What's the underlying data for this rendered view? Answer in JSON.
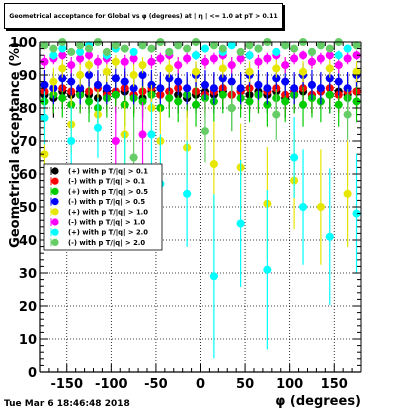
{
  "footer": {
    "timestamp": "Tue Mar  6 18:46:48 2018"
  },
  "colors": {
    "background": "#ffffff",
    "axis": "#000000",
    "grid": "#000000"
  },
  "chart_data": {
    "type": "scatter",
    "title": "Geometrical acceptance for Global vs φ (degrees) at | η | <= 1.0 at pT > 0.11",
    "xlabel": "φ (degrees)",
    "ylabel": "Geometrical acceptance (%)",
    "xlim": [
      -180,
      180
    ],
    "ylim": [
      0,
      100
    ],
    "xticks": [
      -150,
      -100,
      -50,
      0,
      50,
      100,
      150
    ],
    "yticks": [
      0,
      10,
      20,
      30,
      40,
      50,
      60,
      70,
      80,
      90,
      100
    ],
    "grid": true,
    "legend_position": "center-left",
    "series": [
      {
        "name": "(+) with p T/|q| > 0.1",
        "color": "#000000",
        "marker": "circle",
        "x": [
          -175,
          -165,
          -155,
          -145,
          -135,
          -125,
          -115,
          -105,
          -95,
          -85,
          -75,
          -65,
          -55,
          -45,
          -35,
          -25,
          -15,
          -5,
          5,
          15,
          25,
          35,
          45,
          55,
          65,
          75,
          85,
          95,
          105,
          115,
          125,
          135,
          145,
          155,
          165,
          175
        ],
        "y": [
          84,
          83,
          85,
          84,
          85,
          84,
          83,
          85,
          84,
          85,
          84,
          83,
          85,
          84,
          85,
          84,
          83,
          84,
          85,
          84,
          85,
          84,
          85,
          84,
          85,
          84,
          85,
          83,
          84,
          85,
          84,
          85,
          84,
          85,
          84,
          85
        ]
      },
      {
        "name": "(-) with p T/|q| > 0.1",
        "color": "#ff0000",
        "marker": "circle",
        "x": [
          -175,
          -165,
          -155,
          -145,
          -135,
          -125,
          -115,
          -105,
          -95,
          -85,
          -75,
          -65,
          -55,
          -45,
          -35,
          -25,
          -15,
          -5,
          5,
          15,
          25,
          35,
          45,
          55,
          65,
          75,
          85,
          95,
          105,
          115,
          125,
          135,
          145,
          155,
          165,
          175
        ],
        "y": [
          85,
          84,
          86,
          85,
          84,
          85,
          86,
          84,
          85,
          86,
          84,
          85,
          86,
          84,
          85,
          86,
          84,
          85,
          84,
          85,
          86,
          84,
          85,
          86,
          84,
          85,
          86,
          84,
          85,
          86,
          84,
          85,
          86,
          84,
          85,
          85
        ]
      },
      {
        "name": "(+) with p T/|q| > 0.5",
        "color": "#00cc00",
        "marker": "circle",
        "x": [
          -175,
          -165,
          -155,
          -145,
          -135,
          -125,
          -115,
          -105,
          -95,
          -85,
          -75,
          -65,
          -55,
          -45,
          -35,
          -25,
          -15,
          -5,
          5,
          15,
          25,
          35,
          45,
          55,
          65,
          75,
          85,
          95,
          105,
          115,
          125,
          135,
          145,
          155,
          165,
          175
        ],
        "y": [
          82,
          84,
          83,
          81,
          84,
          82,
          80,
          83,
          84,
          81,
          83,
          82,
          84,
          80,
          83,
          82,
          84,
          81,
          83,
          82,
          84,
          80,
          83,
          82,
          84,
          81,
          83,
          82,
          84,
          81,
          83,
          82,
          84,
          81,
          83,
          82
        ]
      },
      {
        "name": "(-) with p T/|q| > 0.5",
        "color": "#0000ff",
        "marker": "circle",
        "x": [
          -175,
          -165,
          -155,
          -145,
          -135,
          -125,
          -115,
          -105,
          -95,
          -85,
          -75,
          -65,
          -55,
          -45,
          -35,
          -25,
          -15,
          -5,
          5,
          15,
          25,
          35,
          45,
          55,
          65,
          75,
          85,
          95,
          105,
          115,
          125,
          135,
          145,
          155,
          165,
          175
        ],
        "y": [
          87,
          86,
          89,
          88,
          86,
          90,
          87,
          86,
          89,
          88,
          86,
          90,
          87,
          86,
          89,
          88,
          86,
          90,
          87,
          86,
          89,
          88,
          86,
          90,
          87,
          86,
          89,
          88,
          86,
          90,
          87,
          86,
          89,
          88,
          86,
          90
        ]
      },
      {
        "name": "(+) with p T/|q| > 1.0",
        "color": "#e6e600",
        "marker": "circle",
        "x": [
          -175,
          -165,
          -155,
          -145,
          -135,
          -125,
          -115,
          -105,
          -95,
          -85,
          -75,
          -65,
          -55,
          -45,
          -35,
          -25,
          -15,
          -5,
          5,
          15,
          25,
          35,
          45,
          55,
          65,
          75,
          85,
          95,
          105,
          115,
          125,
          135,
          145,
          155,
          165,
          175
        ],
        "y": [
          66,
          88,
          92,
          75,
          90,
          93,
          78,
          91,
          94,
          72,
          90,
          93,
          80,
          70,
          92,
          93,
          68,
          91,
          94,
          63,
          92,
          93,
          62,
          91,
          94,
          51,
          92,
          93,
          58,
          91,
          94,
          50,
          92,
          93,
          54,
          91
        ]
      },
      {
        "name": "(-) with p T/|q| > 1.0",
        "color": "#ff00ff",
        "marker": "circle",
        "x": [
          -175,
          -165,
          -155,
          -145,
          -135,
          -125,
          -115,
          -105,
          -95,
          -85,
          -75,
          -65,
          -55,
          -45,
          -35,
          -25,
          -15,
          -5,
          5,
          15,
          25,
          35,
          45,
          55,
          65,
          75,
          85,
          95,
          105,
          115,
          125,
          135,
          145,
          155,
          165,
          175
        ],
        "y": [
          94,
          95,
          96,
          93,
          95,
          96,
          94,
          95,
          70,
          94,
          95,
          72,
          94,
          95,
          96,
          93,
          95,
          96,
          94,
          95,
          96,
          93,
          95,
          96,
          94,
          95,
          96,
          93,
          95,
          96,
          94,
          95,
          96,
          93,
          95,
          96
        ]
      },
      {
        "name": "(+) with p T/|q| > 2.0",
        "color": "#00ffff",
        "marker": "circle",
        "x": [
          -175,
          -165,
          -155,
          -145,
          -135,
          -125,
          -115,
          -105,
          -95,
          -85,
          -75,
          -65,
          -55,
          -45,
          -35,
          -25,
          -15,
          -5,
          5,
          15,
          25,
          35,
          45,
          55,
          65,
          75,
          85,
          95,
          105,
          115,
          125,
          135,
          145,
          155,
          165,
          175
        ],
        "y": [
          77,
          96,
          98,
          70,
          97,
          99,
          74,
          96,
          98,
          58,
          97,
          99,
          72,
          57,
          97,
          99,
          54,
          96,
          98,
          29,
          97,
          99,
          45,
          96,
          98,
          31,
          97,
          99,
          65,
          50,
          97,
          99,
          41,
          96,
          98,
          48
        ]
      },
      {
        "name": "(-) with p T/|q| > 2.0",
        "color": "#66cc66",
        "marker": "circle",
        "x": [
          -175,
          -165,
          -155,
          -145,
          -135,
          -125,
          -115,
          -105,
          -95,
          -85,
          -75,
          -65,
          -55,
          -45,
          -35,
          -25,
          -15,
          -5,
          5,
          15,
          25,
          35,
          45,
          55,
          65,
          75,
          85,
          95,
          105,
          115,
          125,
          135,
          145,
          155,
          165,
          175
        ],
        "y": [
          99,
          98,
          100,
          97,
          99,
          98,
          100,
          97,
          99,
          98,
          65,
          99,
          98,
          100,
          97,
          99,
          98,
          100,
          73,
          99,
          98,
          80,
          97,
          99,
          98,
          100,
          78,
          99,
          98,
          100,
          97,
          99,
          98,
          100,
          78,
          99
        ]
      }
    ]
  }
}
